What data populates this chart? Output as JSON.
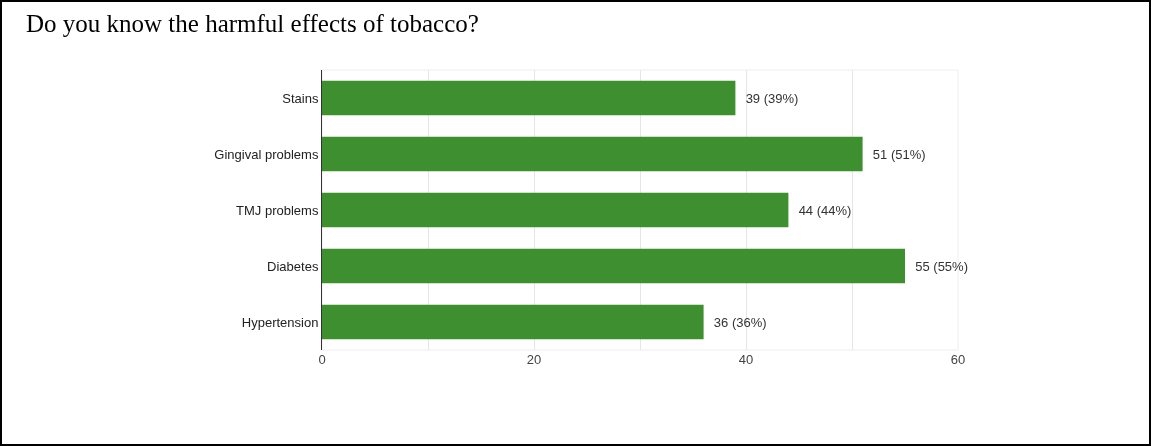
{
  "chart_data": {
    "type": "bar",
    "orientation": "horizontal",
    "title": "Do you know the harmful effects of tobacco?",
    "categories": [
      "Stains",
      "Gingival problems",
      "TMJ problems",
      "Diabetes",
      "Hypertension"
    ],
    "values": [
      39,
      51,
      44,
      55,
      36
    ],
    "value_labels": [
      "39 (39%)",
      "51 (51%)",
      "44 (44%)",
      "55 (55%)",
      "36 (36%)"
    ],
    "color": "#3d8f2f",
    "xlim": [
      0,
      60
    ],
    "xticks": [
      0,
      {
        "value": 10,
        "label": null
      },
      20,
      {
        "value": 30,
        "label": null
      },
      40,
      {
        "value": 50,
        "label": null
      },
      60
    ],
    "grid": "x"
  }
}
